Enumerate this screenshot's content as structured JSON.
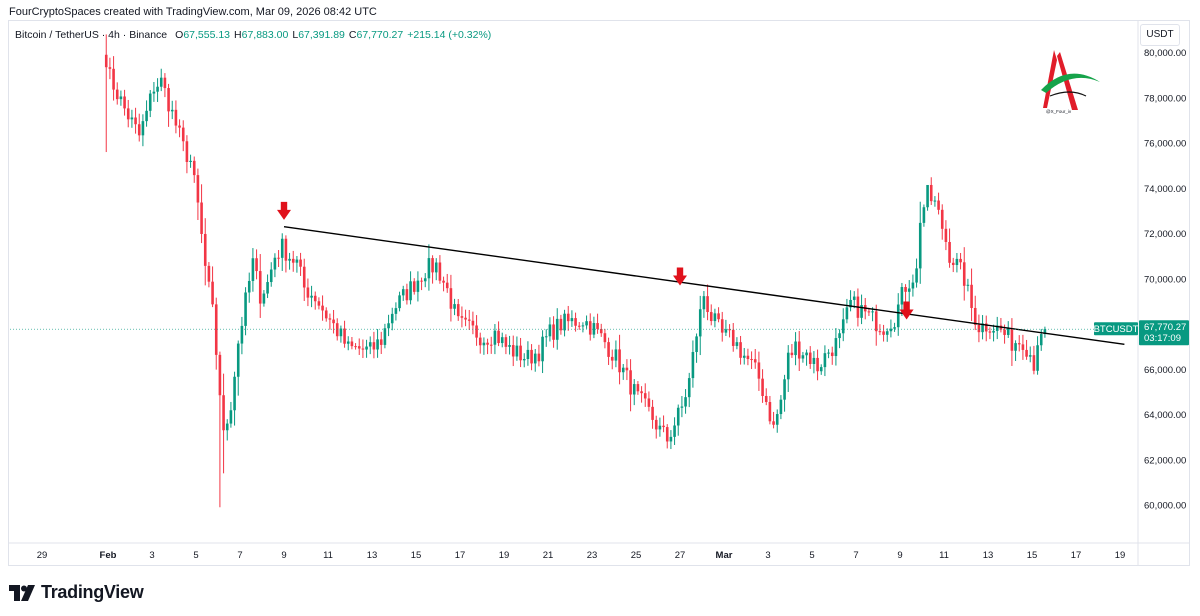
{
  "header": {
    "credit": "FourCryptoSpaces created with TradingView.com, Mar 09, 2026 08:42 UTC"
  },
  "legend": {
    "symbol": "Bitcoin / TetherUS · 4h · Binance",
    "open_label": "O",
    "open": "67,555.13",
    "high_label": "H",
    "high": "67,883.00",
    "low_label": "L",
    "low": "67,391.89",
    "close_label": "C",
    "close": "67,770.27",
    "change": "+215.14 (+0.32%)"
  },
  "currency_button": "USDT",
  "price_tag": {
    "ticker": "BTCUSDT",
    "price": "67,770.27",
    "countdown": "03:17:09",
    "color": "#089981"
  },
  "watermark": {
    "handle": "@X_Four_iv",
    "colors": [
      "#e11d2a",
      "#16a34a",
      "#111111"
    ]
  },
  "footer": {
    "brand": "TradingView"
  },
  "colors": {
    "up": "#089981",
    "down": "#f23645",
    "trendline": "#000000",
    "arrow": "#e0111b",
    "grid": "#f0f3fa"
  },
  "chart_data": {
    "type": "candlestick",
    "title": "Bitcoin / TetherUS · 4h · Binance",
    "timeframe": "4h",
    "ylim": [
      59000,
      81000
    ],
    "y_ticks": [
      "60,000.00",
      "62,000.00",
      "64,000.00",
      "66,000.00",
      "68,000.00",
      "70,000.00",
      "72,000.00",
      "74,000.00",
      "76,000.00",
      "78,000.00",
      "80,000.00"
    ],
    "y_tick_values": [
      60000,
      62000,
      64000,
      66000,
      68000,
      70000,
      72000,
      74000,
      76000,
      78000,
      80000
    ],
    "x_ticks": [
      "29",
      "Feb",
      "3",
      "5",
      "7",
      "9",
      "11",
      "13",
      "15",
      "17",
      "19",
      "21",
      "23",
      "25",
      "27",
      "Mar",
      "3",
      "5",
      "7",
      "9",
      "11",
      "13",
      "15",
      "17",
      "19"
    ],
    "x_tick_days": [
      -3,
      0,
      2,
      4,
      6,
      8,
      10,
      12,
      14,
      16,
      18,
      20,
      22,
      24,
      26,
      28,
      30,
      32,
      34,
      36,
      38,
      40,
      42,
      44,
      46
    ],
    "x_range_days": [
      -3.1,
      46.6
    ],
    "first_candle_day": -0.08,
    "candle_hours": 4,
    "key_closes": [
      [
        0,
        79800
      ],
      [
        1,
        78900
      ],
      [
        3,
        78200
      ],
      [
        5,
        77500
      ],
      [
        7,
        76900
      ],
      [
        9,
        76300
      ],
      [
        11,
        77300
      ],
      [
        13,
        78500
      ],
      [
        15,
        78700
      ],
      [
        17,
        77800
      ],
      [
        19,
        76800
      ],
      [
        21,
        75800
      ],
      [
        23,
        75200
      ],
      [
        25,
        73200
      ],
      [
        27,
        70500
      ],
      [
        29,
        68500
      ],
      [
        31,
        65000
      ],
      [
        32,
        63000
      ],
      [
        34,
        64500
      ],
      [
        36,
        67200
      ],
      [
        38,
        69000
      ],
      [
        40,
        70700
      ],
      [
        42,
        69300
      ],
      [
        44,
        69800
      ],
      [
        46,
        71000
      ],
      [
        48,
        71400
      ],
      [
        50,
        71000
      ],
      [
        52,
        70700
      ],
      [
        54,
        69600
      ],
      [
        57,
        69200
      ],
      [
        60,
        68400
      ],
      [
        63,
        67700
      ],
      [
        66,
        66900
      ],
      [
        69,
        66900
      ],
      [
        72,
        66800
      ],
      [
        75,
        67300
      ],
      [
        78,
        68600
      ],
      [
        81,
        69200
      ],
      [
        84,
        69800
      ],
      [
        87,
        70400
      ],
      [
        90,
        70600
      ],
      [
        93,
        69500
      ],
      [
        96,
        68000
      ],
      [
        100,
        67700
      ],
      [
        103,
        67400
      ],
      [
        106,
        67600
      ],
      [
        109,
        67000
      ],
      [
        112,
        66700
      ],
      [
        115,
        66500
      ],
      [
        118,
        66800
      ],
      [
        121,
        67600
      ],
      [
        124,
        68000
      ],
      [
        127,
        68100
      ],
      [
        130,
        68200
      ],
      [
        133,
        67800
      ],
      [
        136,
        67200
      ],
      [
        139,
        66500
      ],
      [
        142,
        65600
      ],
      [
        145,
        64700
      ],
      [
        148,
        64100
      ],
      [
        151,
        63300
      ],
      [
        153,
        62900
      ],
      [
        155,
        63600
      ],
      [
        157,
        64300
      ],
      [
        159,
        65500
      ],
      [
        161,
        67600
      ],
      [
        163,
        69300
      ],
      [
        165,
        68300
      ],
      [
        168,
        67500
      ],
      [
        171,
        67300
      ],
      [
        174,
        66600
      ],
      [
        176,
        66200
      ],
      [
        178,
        65600
      ],
      [
        180,
        64600
      ],
      [
        182,
        63400
      ],
      [
        184,
        64600
      ],
      [
        186,
        66500
      ],
      [
        188,
        67000
      ],
      [
        191,
        66700
      ],
      [
        194,
        66100
      ],
      [
        197,
        66800
      ],
      [
        200,
        67300
      ],
      [
        203,
        68900
      ],
      [
        206,
        68600
      ],
      [
        209,
        68200
      ],
      [
        212,
        67900
      ],
      [
        215,
        68300
      ],
      [
        218,
        69700
      ],
      [
        221,
        70300
      ],
      [
        222,
        72700
      ],
      [
        224,
        73700
      ],
      [
        226,
        73300
      ],
      [
        228,
        72300
      ],
      [
        230,
        71100
      ],
      [
        232,
        70600
      ],
      [
        234,
        70000
      ],
      [
        236,
        68700
      ],
      [
        238,
        67900
      ],
      [
        241,
        68000
      ],
      [
        244,
        67700
      ],
      [
        247,
        67200
      ],
      [
        250,
        67300
      ],
      [
        252,
        66700
      ],
      [
        253,
        66300
      ],
      [
        254,
        67300
      ],
      [
        255,
        67555
      ],
      [
        256,
        67770
      ]
    ],
    "last_candle": {
      "open": 67555.13,
      "high": 67883.0,
      "low": 67391.89,
      "close": 67770.27
    },
    "trendline": {
      "start": [
        8.0,
        72300
      ],
      "end": [
        46.2,
        67100
      ]
    },
    "arrows_days": [
      8.0,
      26.0,
      36.3
    ],
    "arrow_prices": [
      72600,
      69700,
      68200
    ]
  }
}
